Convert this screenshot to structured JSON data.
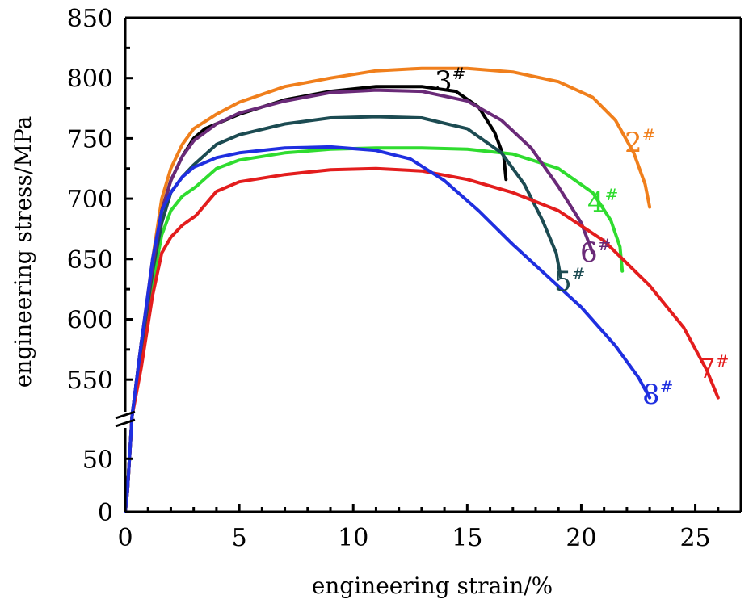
{
  "chart_data": {
    "type": "line",
    "xlabel": "engineering strain/%",
    "ylabel": "engineering stress/MPa",
    "xlim": [
      0,
      27
    ],
    "x_ticks": [
      "0",
      "5",
      "10",
      "15",
      "20",
      "25"
    ],
    "y_axis_break": {
      "lower_range": [
        0,
        70
      ],
      "upper_range": [
        520,
        850
      ],
      "break_style": "double-slash"
    },
    "y_ticks_lower": [
      "0",
      "50"
    ],
    "y_ticks_upper": [
      "550",
      "600",
      "650",
      "700",
      "750",
      "800",
      "850"
    ],
    "series": [
      {
        "name": "2#",
        "label_main": "2",
        "label_sup": "#",
        "color": "#f07f1c",
        "points": [
          [
            0,
            0
          ],
          [
            0.1,
            20
          ],
          [
            0.2,
            55
          ],
          [
            0.3,
            520
          ],
          [
            0.7,
            580
          ],
          [
            1.2,
            650
          ],
          [
            1.6,
            700
          ],
          [
            2,
            725
          ],
          [
            2.5,
            745
          ],
          [
            3,
            758
          ],
          [
            4,
            770
          ],
          [
            5,
            780
          ],
          [
            7,
            793
          ],
          [
            9,
            800
          ],
          [
            11,
            806
          ],
          [
            13,
            808
          ],
          [
            15,
            808
          ],
          [
            17,
            805
          ],
          [
            19,
            797
          ],
          [
            20.5,
            784
          ],
          [
            21.5,
            765
          ],
          [
            22.3,
            738
          ],
          [
            22.8,
            712
          ],
          [
            23,
            693
          ]
        ]
      },
      {
        "name": "3#",
        "label_main": "3",
        "label_sup": "#",
        "color": "#000000",
        "points": [
          [
            0,
            0
          ],
          [
            0.1,
            20
          ],
          [
            0.2,
            55
          ],
          [
            0.3,
            520
          ],
          [
            0.7,
            580
          ],
          [
            1.2,
            645
          ],
          [
            1.6,
            690
          ],
          [
            2,
            715
          ],
          [
            2.5,
            735
          ],
          [
            3,
            750
          ],
          [
            3.5,
            758
          ],
          [
            5,
            770
          ],
          [
            7,
            782
          ],
          [
            9,
            789
          ],
          [
            11,
            793
          ],
          [
            13,
            793
          ],
          [
            14.5,
            789
          ],
          [
            15.5,
            776
          ],
          [
            16.2,
            755
          ],
          [
            16.6,
            735
          ],
          [
            16.7,
            716
          ]
        ]
      },
      {
        "name": "4#",
        "label_main": "4",
        "label_sup": "#",
        "color": "#2fdc2f",
        "points": [
          [
            0,
            0
          ],
          [
            0.1,
            20
          ],
          [
            0.2,
            55
          ],
          [
            0.3,
            520
          ],
          [
            0.7,
            570
          ],
          [
            1.2,
            630
          ],
          [
            1.6,
            670
          ],
          [
            2,
            690
          ],
          [
            2.5,
            702
          ],
          [
            3.1,
            710
          ],
          [
            4,
            725
          ],
          [
            5,
            732
          ],
          [
            7,
            738
          ],
          [
            9,
            741
          ],
          [
            11,
            742
          ],
          [
            13,
            742
          ],
          [
            15,
            741
          ],
          [
            17,
            737
          ],
          [
            19,
            725
          ],
          [
            20.5,
            705
          ],
          [
            21.3,
            682
          ],
          [
            21.7,
            660
          ],
          [
            21.8,
            640
          ]
        ]
      },
      {
        "name": "5#",
        "label_main": "5",
        "label_sup": "#",
        "color": "#1c4b52",
        "points": [
          [
            0,
            0
          ],
          [
            0.1,
            20
          ],
          [
            0.2,
            55
          ],
          [
            0.3,
            520
          ],
          [
            0.7,
            575
          ],
          [
            1.2,
            640
          ],
          [
            1.6,
            680
          ],
          [
            2,
            705
          ],
          [
            2.5,
            718
          ],
          [
            3,
            728
          ],
          [
            4,
            745
          ],
          [
            5,
            753
          ],
          [
            7,
            762
          ],
          [
            9,
            767
          ],
          [
            11,
            768
          ],
          [
            13,
            767
          ],
          [
            15,
            758
          ],
          [
            16.5,
            738
          ],
          [
            17.5,
            712
          ],
          [
            18.3,
            682
          ],
          [
            18.9,
            655
          ],
          [
            19.1,
            635
          ]
        ]
      },
      {
        "name": "6#",
        "label_main": "6",
        "label_sup": "#",
        "color": "#6a2a78",
        "points": [
          [
            0,
            0
          ],
          [
            0.1,
            20
          ],
          [
            0.2,
            55
          ],
          [
            0.3,
            520
          ],
          [
            0.7,
            580
          ],
          [
            1.2,
            645
          ],
          [
            1.6,
            690
          ],
          [
            2,
            715
          ],
          [
            2.5,
            735
          ],
          [
            3,
            748
          ],
          [
            4,
            762
          ],
          [
            5,
            771
          ],
          [
            7,
            781
          ],
          [
            9,
            788
          ],
          [
            11,
            790
          ],
          [
            13,
            789
          ],
          [
            15,
            781
          ],
          [
            16.5,
            765
          ],
          [
            17.8,
            742
          ],
          [
            19,
            710
          ],
          [
            20,
            680
          ],
          [
            20.5,
            655
          ]
        ]
      },
      {
        "name": "7#",
        "label_main": "7",
        "label_sup": "#",
        "color": "#e31d1d",
        "points": [
          [
            0,
            0
          ],
          [
            0.1,
            20
          ],
          [
            0.2,
            55
          ],
          [
            0.3,
            520
          ],
          [
            0.7,
            560
          ],
          [
            1.2,
            620
          ],
          [
            1.6,
            655
          ],
          [
            2,
            668
          ],
          [
            2.5,
            678
          ],
          [
            3.1,
            686
          ],
          [
            4,
            706
          ],
          [
            5,
            714
          ],
          [
            7,
            720
          ],
          [
            9,
            724
          ],
          [
            11,
            725
          ],
          [
            13,
            723
          ],
          [
            15,
            716
          ],
          [
            17,
            705
          ],
          [
            19,
            690
          ],
          [
            21,
            665
          ],
          [
            23,
            628
          ],
          [
            24.5,
            593
          ],
          [
            25.5,
            558
          ],
          [
            26,
            535
          ]
        ]
      },
      {
        "name": "8#",
        "label_main": "8",
        "label_sup": "#",
        "color": "#1f2fe0",
        "points": [
          [
            0,
            0
          ],
          [
            0.1,
            20
          ],
          [
            0.2,
            55
          ],
          [
            0.3,
            520
          ],
          [
            0.7,
            580
          ],
          [
            1.2,
            650
          ],
          [
            1.6,
            690
          ],
          [
            2,
            705
          ],
          [
            2.5,
            718
          ],
          [
            3,
            726
          ],
          [
            4,
            734
          ],
          [
            5,
            738
          ],
          [
            7,
            742
          ],
          [
            9,
            743
          ],
          [
            11,
            740
          ],
          [
            12.5,
            733
          ],
          [
            14,
            715
          ],
          [
            15.5,
            690
          ],
          [
            17,
            662
          ],
          [
            18.5,
            636
          ],
          [
            20,
            610
          ],
          [
            21.5,
            578
          ],
          [
            22.5,
            552
          ],
          [
            23,
            535
          ]
        ]
      }
    ]
  }
}
